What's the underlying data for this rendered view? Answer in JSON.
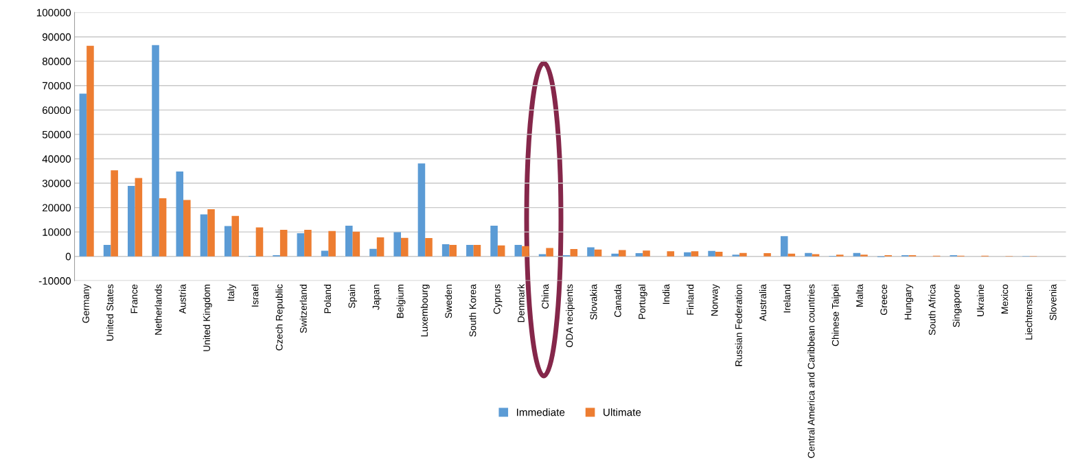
{
  "chart_data": {
    "type": "bar",
    "categories": [
      "Germany",
      "United States",
      "France",
      "Netherlands",
      "Austria",
      "United Kingdom",
      "Italy",
      "Israel",
      "Czech Republic",
      "Switzerland",
      "Poland",
      "Spain",
      "Japan",
      "Belgium",
      "Luxembourg",
      "Sweden",
      "South Korea",
      "Cyprus",
      "Denmark",
      "China",
      "ODA recipients",
      "Slovakia",
      "Canada",
      "Portugal",
      "India",
      "Finland",
      "Norway",
      "Russian Federation",
      "Australia",
      "Ireland",
      "Central America and Caribbean countries",
      "Chinese Taipei",
      "Malta",
      "Greece",
      "Hungary",
      "South Africa",
      "Singapore",
      "Ukraine",
      "Mexico",
      "Liechtenstein",
      "Slovenia"
    ],
    "series": [
      {
        "name": "Immediate",
        "color": "#5b9bd5",
        "values": [
          66700,
          4700,
          28900,
          86600,
          34800,
          17200,
          12400,
          200,
          500,
          9500,
          2300,
          12600,
          3100,
          9900,
          38100,
          5000,
          4700,
          12600,
          4700,
          900,
          500,
          3700,
          1100,
          1300,
          0,
          1700,
          2200,
          700,
          0,
          8300,
          1400,
          200,
          1400,
          -300,
          500,
          null,
          500,
          0,
          null,
          100,
          0
        ]
      },
      {
        "name": "Ultimate",
        "color": "#ed7d31",
        "values": [
          86300,
          35300,
          32100,
          23800,
          23100,
          19300,
          16600,
          11900,
          10900,
          10900,
          10400,
          10100,
          7800,
          7600,
          7500,
          4700,
          4700,
          4500,
          4200,
          3400,
          3000,
          2800,
          2600,
          2400,
          2100,
          2100,
          1900,
          1400,
          1300,
          1100,
          900,
          700,
          700,
          500,
          500,
          300,
          300,
          300,
          100,
          100,
          0
        ]
      }
    ],
    "ylim": [
      -10000,
      100000
    ],
    "yticks": [
      -10000,
      0,
      10000,
      20000,
      30000,
      40000,
      50000,
      60000,
      70000,
      80000,
      90000,
      100000
    ],
    "grid": "y",
    "legend": "bottom"
  }
}
